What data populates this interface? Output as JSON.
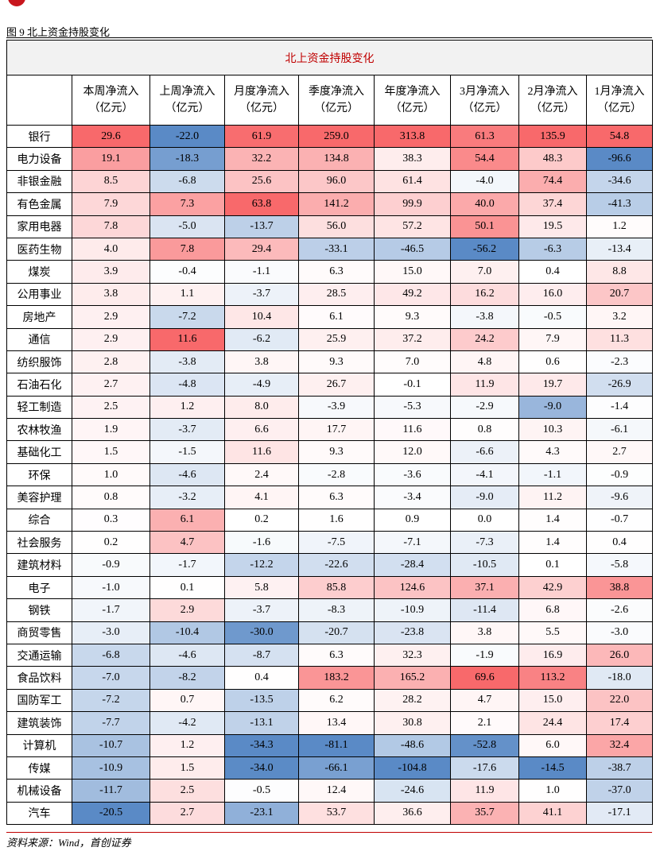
{
  "caption": "图 9 北上资金持股变化",
  "table": {
    "title": "北上资金持股变化",
    "colors": {
      "positive": "#f8696b",
      "negative": "#5a8ac6"
    },
    "columns": [
      {
        "name": "本周净流入",
        "unit": "（亿元）"
      },
      {
        "name": "上周净流入",
        "unit": "（亿元）"
      },
      {
        "name": "月度净流入",
        "unit": "（亿元）"
      },
      {
        "name": "季度净流入",
        "unit": "（亿元）"
      },
      {
        "name": "年度净流入",
        "unit": "（亿元）"
      },
      {
        "name": "3月净流入",
        "unit": "（亿元）"
      },
      {
        "name": "2月净流入",
        "unit": "（亿元）"
      },
      {
        "name": "1月净流入",
        "unit": "（亿元）"
      }
    ],
    "rows": [
      {
        "label": "银行",
        "values": [
          "29.6",
          "-22.0",
          "61.9",
          "259.0",
          "313.8",
          "61.3",
          "135.9",
          "54.8"
        ]
      },
      {
        "label": "电力设备",
        "values": [
          "19.1",
          "-18.3",
          "32.2",
          "134.8",
          "38.3",
          "54.4",
          "48.3",
          "-96.6"
        ]
      },
      {
        "label": "非银金融",
        "values": [
          "8.5",
          "-6.8",
          "25.6",
          "96.0",
          "61.4",
          "-4.0",
          "74.4",
          "-34.6"
        ]
      },
      {
        "label": "有色金属",
        "values": [
          "7.9",
          "7.3",
          "63.8",
          "141.2",
          "99.9",
          "40.0",
          "37.4",
          "-41.3"
        ]
      },
      {
        "label": "家用电器",
        "values": [
          "7.8",
          "-5.0",
          "-13.7",
          "56.0",
          "57.2",
          "50.1",
          "19.5",
          "1.2"
        ]
      },
      {
        "label": "医药生物",
        "values": [
          "4.0",
          "7.8",
          "29.4",
          "-33.1",
          "-46.5",
          "-56.2",
          "-6.3",
          "-13.4"
        ]
      },
      {
        "label": "煤炭",
        "values": [
          "3.9",
          "-0.4",
          "-1.1",
          "6.3",
          "15.0",
          "7.0",
          "0.4",
          "8.8"
        ]
      },
      {
        "label": "公用事业",
        "values": [
          "3.8",
          "1.1",
          "-3.7",
          "28.5",
          "49.2",
          "16.2",
          "16.0",
          "20.7"
        ]
      },
      {
        "label": "房地产",
        "values": [
          "2.9",
          "-7.2",
          "10.4",
          "6.1",
          "9.3",
          "-3.8",
          "-0.5",
          "3.2"
        ]
      },
      {
        "label": "通信",
        "values": [
          "2.9",
          "11.6",
          "-6.2",
          "25.9",
          "37.2",
          "24.2",
          "7.9",
          "11.3"
        ]
      },
      {
        "label": "纺织服饰",
        "values": [
          "2.8",
          "-3.8",
          "3.8",
          "9.3",
          "7.0",
          "4.8",
          "0.6",
          "-2.3"
        ]
      },
      {
        "label": "石油石化",
        "values": [
          "2.7",
          "-4.8",
          "-4.9",
          "26.7",
          "-0.1",
          "11.9",
          "19.7",
          "-26.9"
        ]
      },
      {
        "label": "轻工制造",
        "values": [
          "2.5",
          "1.2",
          "8.0",
          "-3.9",
          "-5.3",
          "-2.9",
          "-9.0",
          "-1.4"
        ]
      },
      {
        "label": "农林牧渔",
        "values": [
          "1.9",
          "-3.7",
          "6.6",
          "17.7",
          "11.6",
          "0.8",
          "10.3",
          "-6.1"
        ]
      },
      {
        "label": "基础化工",
        "values": [
          "1.5",
          "-1.5",
          "11.6",
          "9.3",
          "12.0",
          "-6.6",
          "4.3",
          "2.7"
        ]
      },
      {
        "label": "环保",
        "values": [
          "1.0",
          "-4.6",
          "2.4",
          "-2.8",
          "-3.6",
          "-4.1",
          "-1.1",
          "-0.9"
        ]
      },
      {
        "label": "美容护理",
        "values": [
          "0.8",
          "-3.2",
          "4.1",
          "6.3",
          "-3.4",
          "-9.0",
          "11.2",
          "-9.6"
        ]
      },
      {
        "label": "综合",
        "values": [
          "0.3",
          "6.1",
          "0.2",
          "1.6",
          "0.9",
          "0.0",
          "1.4",
          "-0.7"
        ]
      },
      {
        "label": "社会服务",
        "values": [
          "0.2",
          "4.7",
          "-1.6",
          "-7.5",
          "-7.1",
          "-7.3",
          "1.4",
          "0.4"
        ]
      },
      {
        "label": "建筑材料",
        "values": [
          "-0.9",
          "-1.7",
          "-12.2",
          "-22.6",
          "-28.4",
          "-10.5",
          "0.1",
          "-5.8"
        ]
      },
      {
        "label": "电子",
        "values": [
          "-1.0",
          "0.1",
          "5.8",
          "85.8",
          "124.6",
          "37.1",
          "42.9",
          "38.8"
        ]
      },
      {
        "label": "钢铁",
        "values": [
          "-1.7",
          "2.9",
          "-3.7",
          "-8.3",
          "-10.9",
          "-11.4",
          "6.8",
          "-2.6"
        ]
      },
      {
        "label": "商贸零售",
        "values": [
          "-3.0",
          "-10.4",
          "-30.0",
          "-20.7",
          "-23.8",
          "3.8",
          "5.5",
          "-3.0"
        ]
      },
      {
        "label": "交通运输",
        "values": [
          "-6.8",
          "-4.6",
          "-8.7",
          "6.3",
          "32.3",
          "-1.9",
          "16.9",
          "26.0"
        ]
      },
      {
        "label": "食品饮料",
        "values": [
          "-7.0",
          "-8.2",
          "0.4",
          "183.2",
          "165.2",
          "69.6",
          "113.2",
          "-18.0"
        ]
      },
      {
        "label": "国防军工",
        "values": [
          "-7.2",
          "0.7",
          "-13.5",
          "6.2",
          "28.2",
          "4.7",
          "15.0",
          "22.0"
        ]
      },
      {
        "label": "建筑装饰",
        "values": [
          "-7.7",
          "-4.2",
          "-13.1",
          "13.4",
          "30.8",
          "2.1",
          "24.4",
          "17.4"
        ]
      },
      {
        "label": "计算机",
        "values": [
          "-10.7",
          "1.2",
          "-34.3",
          "-81.1",
          "-48.6",
          "-52.8",
          "6.0",
          "32.4"
        ]
      },
      {
        "label": "传媒",
        "values": [
          "-10.9",
          "1.5",
          "-34.0",
          "-66.1",
          "-104.8",
          "-17.6",
          "-14.5",
          "-38.7"
        ]
      },
      {
        "label": "机械设备",
        "values": [
          "-11.7",
          "2.5",
          "-0.5",
          "12.4",
          "-24.6",
          "11.9",
          "1.0",
          "-37.0"
        ]
      },
      {
        "label": "汽车",
        "values": [
          "-20.5",
          "2.7",
          "-23.1",
          "53.7",
          "36.6",
          "35.7",
          "41.1",
          "-17.1"
        ]
      }
    ]
  },
  "source": "资料来源：Wind，首创证券"
}
